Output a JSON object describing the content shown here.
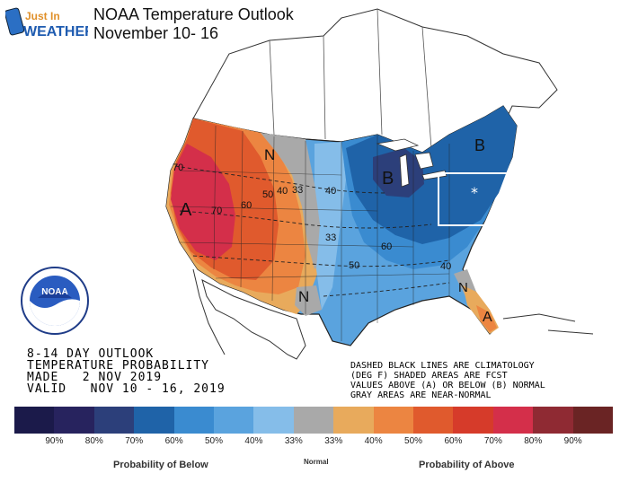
{
  "brand": {
    "line1": "Just In",
    "line2": "WEATHER"
  },
  "title": {
    "line1": "NOAA Temperature Outlook",
    "line2": "November 10- 16"
  },
  "outlook": {
    "line1": "8-14 DAY OUTLOOK",
    "line2": "TEMPERATURE PROBABILITY",
    "line3": "MADE   2 NOV 2019",
    "line4": "VALID   NOV 10 - 16, 2019"
  },
  "note": {
    "line1": "DASHED BLACK LINES ARE CLIMATOLOGY",
    "line2": "(DEG F) SHADED AREAS ARE FCST",
    "line3": "VALUES ABOVE (A) OR BELOW (B) NORMAL",
    "line4": "GRAY AREAS ARE NEAR-NORMAL"
  },
  "noaa_logo": {
    "text": "NOAA"
  },
  "map_labels": {
    "A_west": "A",
    "A_florida": "A",
    "B_lakes": "B",
    "B_northeast": "B",
    "N_north": "N",
    "N_south": "N",
    "N_southeast": "N",
    "t70a": "70",
    "t70b": "70",
    "t60": "60",
    "t50": "50",
    "t40": "40",
    "t33a": "33",
    "t40b": "40",
    "t33b": "33",
    "t60b": "60",
    "t50b": "50",
    "t40c": "40"
  },
  "legend": {
    "colors": [
      "#1b1a4a",
      "#27235e",
      "#2c3f7a",
      "#1f63a8",
      "#3a8bd0",
      "#5aa3de",
      "#85bde9",
      "#a9a9a9",
      "#e8aa5c",
      "#ec8541",
      "#e05a2d",
      "#d63b2a",
      "#d42f4a",
      "#8f2a33",
      "#6a2424"
    ],
    "ticks": [
      "90%",
      "80%",
      "70%",
      "60%",
      "50%",
      "40%",
      "33%",
      "33%",
      "40%",
      "50%",
      "60%",
      "70%",
      "80%",
      "90%"
    ],
    "below_label": "Probability of Below",
    "normal_label": "Normal",
    "above_label": "Probability of Above"
  }
}
